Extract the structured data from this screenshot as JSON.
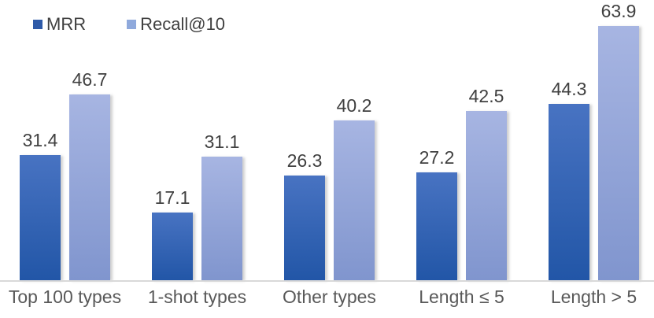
{
  "chart_data": {
    "type": "bar",
    "categories": [
      "Top 100 types",
      "1-shot types",
      "Other types",
      "Length ≤ 5",
      "Length > 5"
    ],
    "series": [
      {
        "name": "MRR",
        "values": [
          31.4,
          17.1,
          26.3,
          27.2,
          44.3
        ],
        "legend_color": "#2E5AA8",
        "gradient_top": "#4873C2",
        "gradient_bottom": "#2256A7"
      },
      {
        "name": "Recall@10",
        "values": [
          46.7,
          31.1,
          40.2,
          42.5,
          63.9
        ],
        "legend_color": "#8FA9DC",
        "gradient_top": "#A7B5E2",
        "gradient_bottom": "#8095CE"
      }
    ],
    "title": "",
    "xlabel": "",
    "ylabel": "",
    "ylim": [
      0,
      70
    ],
    "grid": false,
    "y_axis_visible": false,
    "legend_position": "top-left",
    "data_labels": true,
    "data_label_color": "#404040",
    "category_label_color": "#595959",
    "axis_line_color": "#D9D9D9"
  }
}
